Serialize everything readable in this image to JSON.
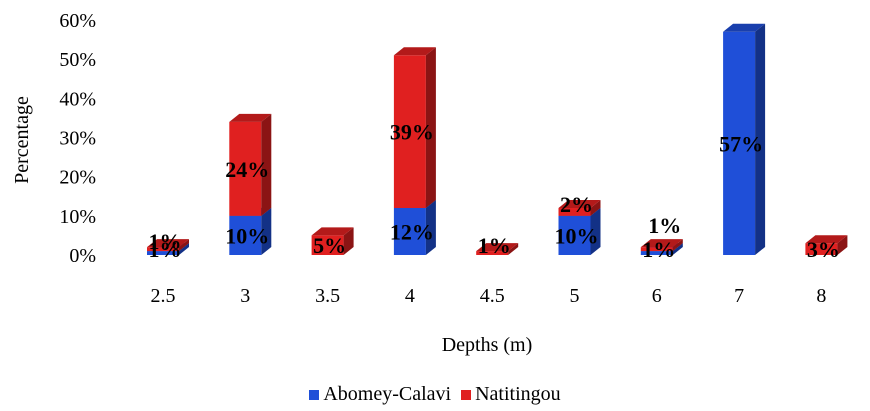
{
  "chart_data": {
    "type": "bar",
    "stacked": true,
    "style": "3d",
    "categories": [
      "2.5",
      "3",
      "3.5",
      "4",
      "4.5",
      "5",
      "6",
      "7",
      "8"
    ],
    "series": [
      {
        "name": "Abomey-Calavi",
        "color": "#1f4fd8",
        "values": [
          1,
          10,
          0,
          12,
          0,
          10,
          1,
          57,
          0
        ],
        "labels": [
          "1%",
          "10%",
          "",
          "12%",
          "",
          "10%",
          "1%",
          "57%",
          ""
        ]
      },
      {
        "name": "Natitingou",
        "color": "#e02020",
        "values": [
          1,
          24,
          5,
          39,
          1,
          2,
          1,
          0,
          3
        ],
        "labels": [
          "1%",
          "24%",
          "5%",
          "39%",
          "1%",
          "2%",
          "1%",
          "",
          "3%"
        ]
      }
    ],
    "xlabel": "Depths (m)",
    "ylabel": "Percentage",
    "ylim": [
      0,
      60
    ],
    "yticks": [
      "0%",
      "10%",
      "20%",
      "30%",
      "40%",
      "50%",
      "60%"
    ],
    "grid": false,
    "legend_position": "bottom"
  }
}
